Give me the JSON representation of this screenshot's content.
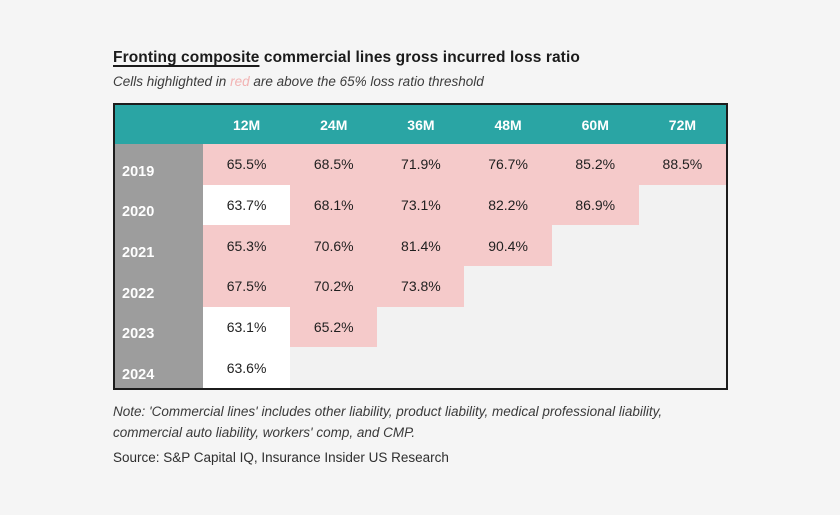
{
  "title": {
    "underlined": "Fronting composite",
    "rest": " commercial lines gross incurred loss ratio"
  },
  "subtitle": {
    "prefix": "Cells highlighted in ",
    "colored_word": "red",
    "suffix": " are above the 65% loss ratio threshold"
  },
  "chart_data": {
    "type": "heatmap",
    "title": "Fronting composite commercial lines gross incurred loss ratio",
    "subtitle": "Cells highlighted in red are above the 65% loss ratio threshold",
    "columns": [
      "12M",
      "24M",
      "36M",
      "48M",
      "60M",
      "72M"
    ],
    "rows": [
      {
        "year": "2019",
        "values": [
          65.5,
          68.5,
          71.9,
          76.7,
          85.2,
          88.5
        ]
      },
      {
        "year": "2020",
        "values": [
          63.7,
          68.1,
          73.1,
          82.2,
          86.9,
          null
        ]
      },
      {
        "year": "2021",
        "values": [
          65.3,
          70.6,
          81.4,
          90.4,
          null,
          null
        ]
      },
      {
        "year": "2022",
        "values": [
          67.5,
          70.2,
          73.8,
          null,
          null,
          null
        ]
      },
      {
        "year": "2023",
        "values": [
          63.1,
          65.2,
          null,
          null,
          null,
          null
        ]
      },
      {
        "year": "2024",
        "values": [
          63.6,
          null,
          null,
          null,
          null,
          null
        ]
      }
    ],
    "value_suffix": "%",
    "threshold_pct": 65,
    "highlight_rule": "values above 65% are highlighted pink",
    "colors": {
      "header_bg": "#2aa5a4",
      "year_bg": "#9d9d9d",
      "above_bg": "#f5caca",
      "below_bg": "#ffffff",
      "empty_bg": "#f2f2f2",
      "red_word": "#f2b3b3"
    }
  },
  "footer": {
    "note": "Note: 'Commercial lines' includes other liability, product liability, medical professional liability, commercial auto liability, workers' comp, and CMP.",
    "source": "Source: S&P Capital IQ, Insurance Insider US Research"
  }
}
